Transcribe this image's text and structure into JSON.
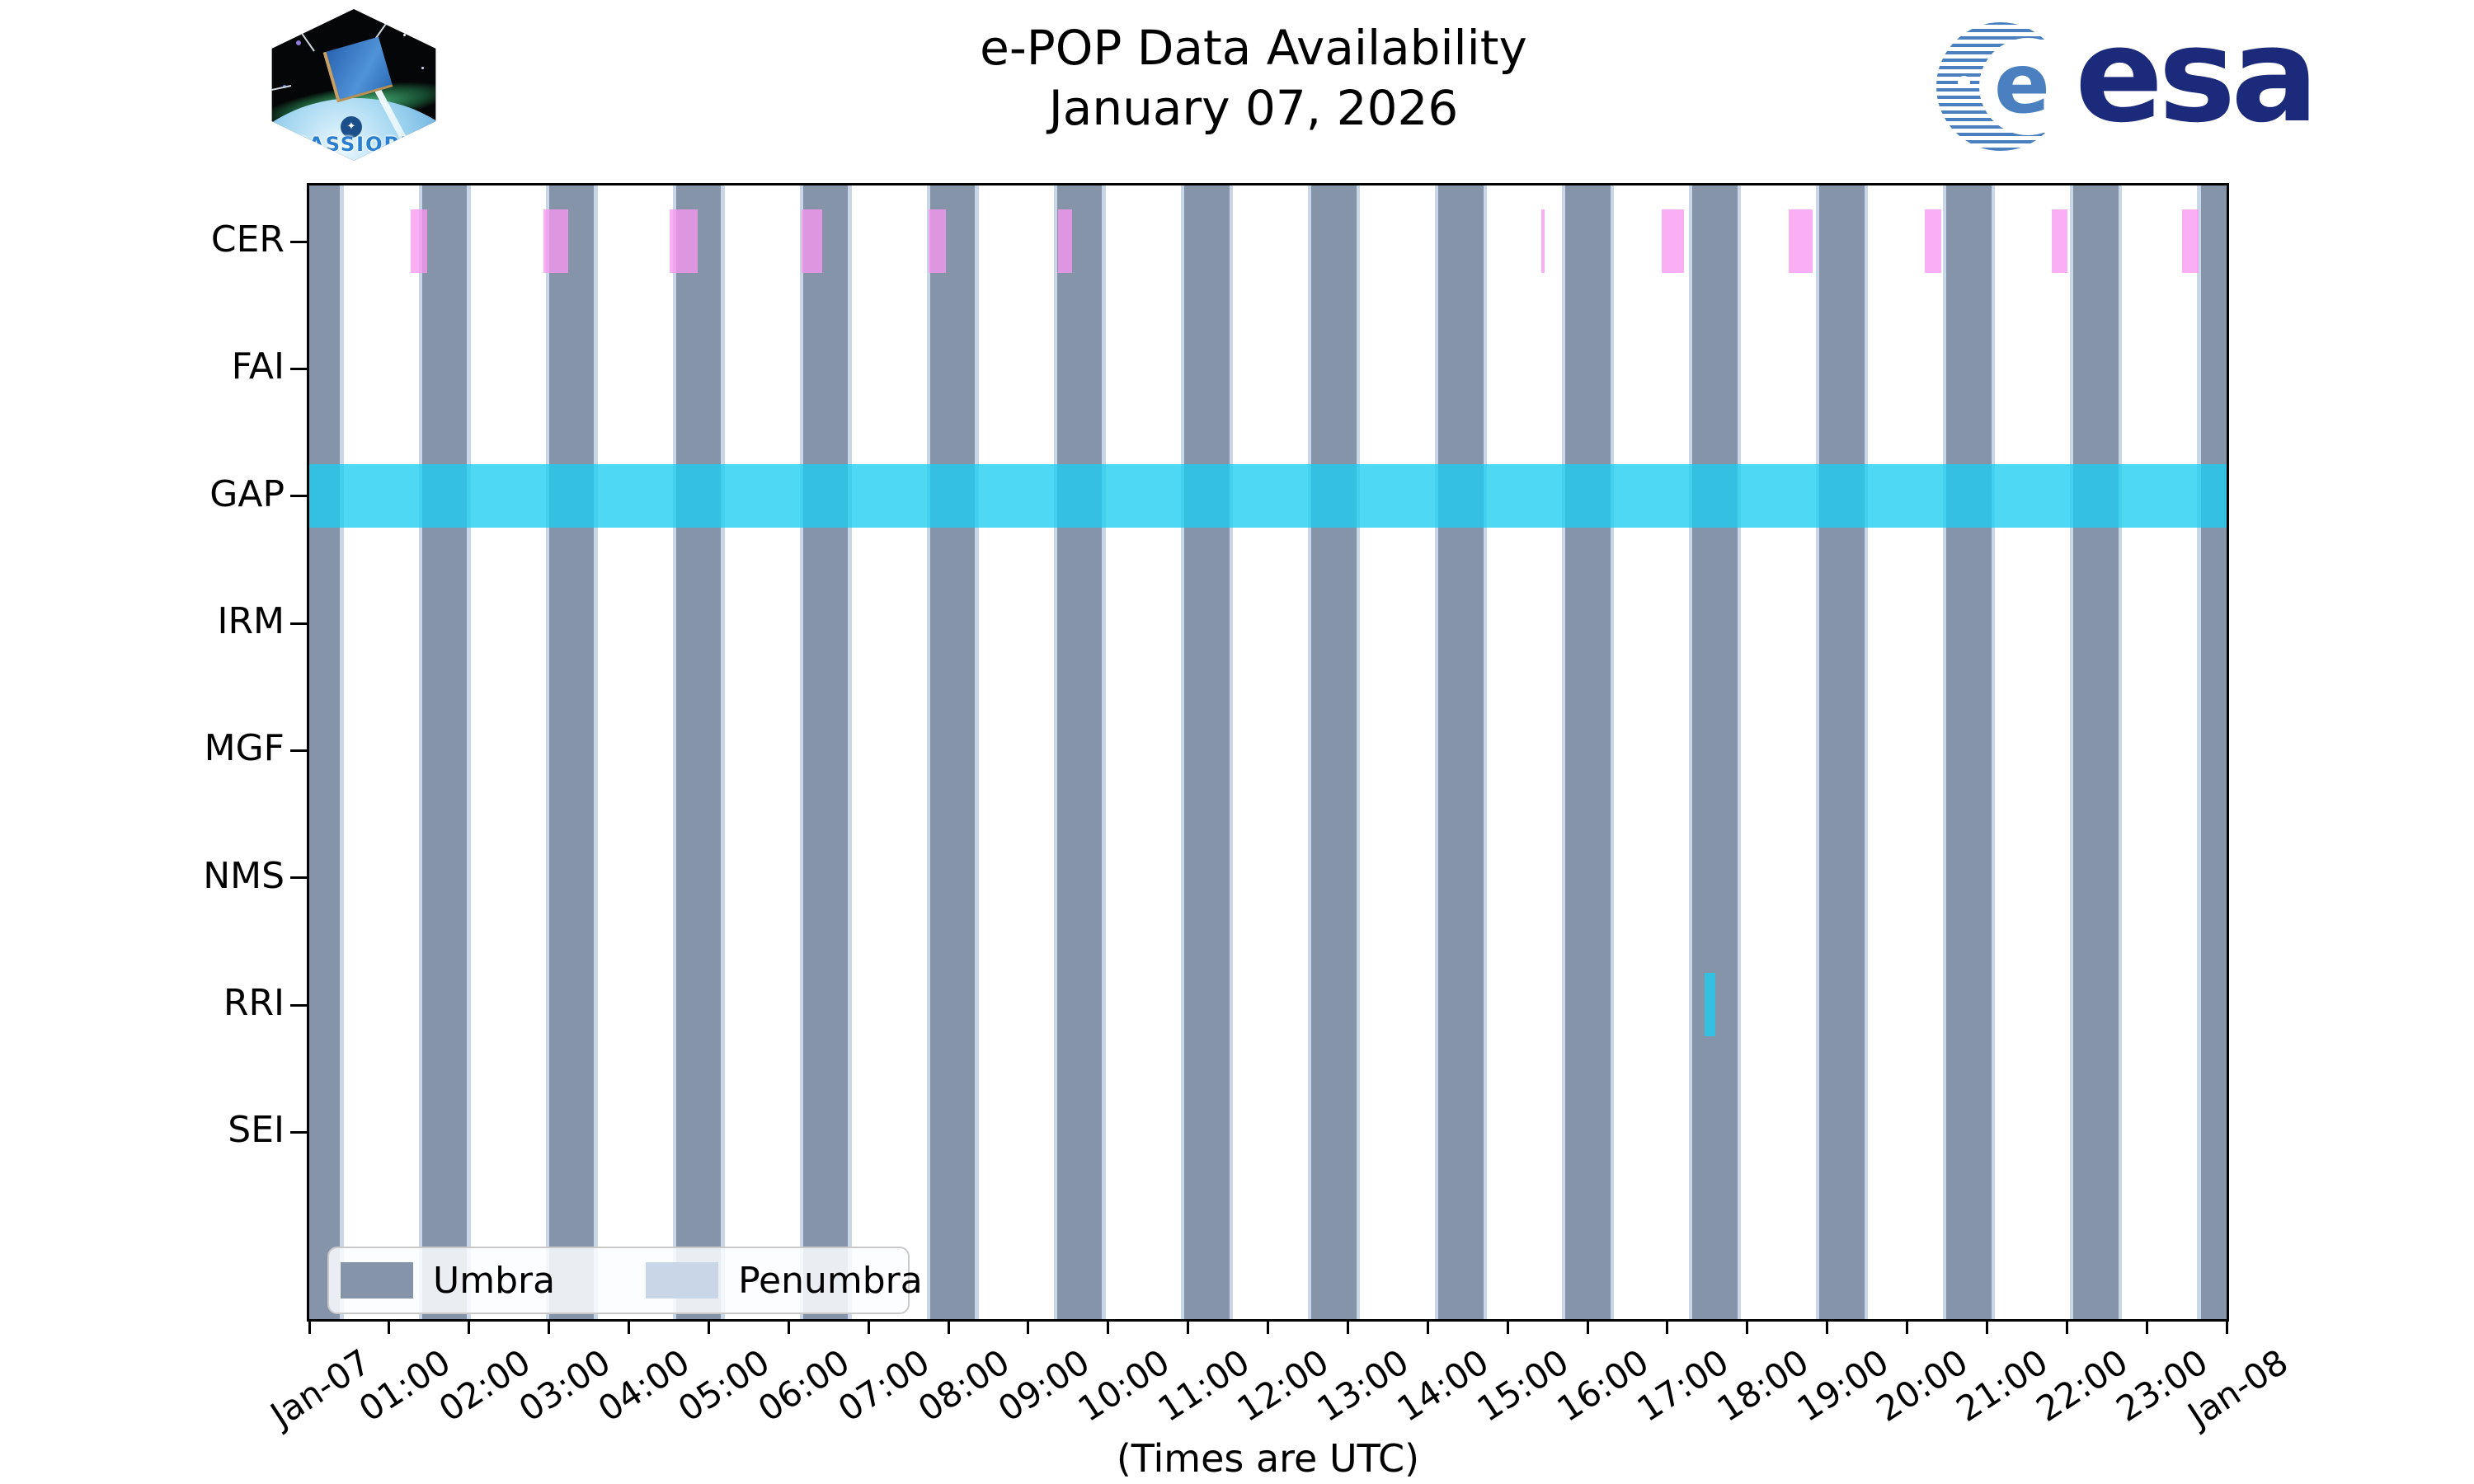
{
  "header": {
    "title_line1": "e-POP Data Availability",
    "title_line2": "January 07, 2026",
    "cassiope_patch_label": "CASSIOPE",
    "esa_wordmark": "esa"
  },
  "chart_data": {
    "type": "timeline-availability",
    "title": "e-POP Data Availability",
    "subtitle": "January 07, 2026",
    "xlabel": "(Times are UTC)",
    "x_range_hours": [
      0,
      24
    ],
    "x_tick_labels": [
      "Jan-07",
      "01:00",
      "02:00",
      "03:00",
      "04:00",
      "05:00",
      "06:00",
      "07:00",
      "08:00",
      "09:00",
      "10:00",
      "11:00",
      "12:00",
      "13:00",
      "14:00",
      "15:00",
      "16:00",
      "17:00",
      "18:00",
      "19:00",
      "20:00",
      "21:00",
      "22:00",
      "23:00",
      "Jan-08"
    ],
    "instruments": [
      "CER",
      "FAI",
      "GAP",
      "IRM",
      "MGF",
      "NMS",
      "RRI",
      "SEI"
    ],
    "legend": [
      {
        "label": "Umbra",
        "color": "#8594a8"
      },
      {
        "label": "Penumbra",
        "color": "#c9d6e7"
      }
    ],
    "colors": {
      "umbra": "#8594a8",
      "penumbra": "#c9d6e7",
      "cer_availability": "rgba(248,151,240,0.78)",
      "cyan_availability": "rgba(30,205,240,0.78)",
      "axis": "#000000"
    },
    "umbra_intervals_h": [
      [
        -0.17,
        0.39
      ],
      [
        1.42,
        1.98
      ],
      [
        3.01,
        3.57
      ],
      [
        4.6,
        5.16
      ],
      [
        6.19,
        6.75
      ],
      [
        7.78,
        8.34
      ],
      [
        9.37,
        9.93
      ],
      [
        10.96,
        11.52
      ],
      [
        12.55,
        13.11
      ],
      [
        14.14,
        14.7
      ],
      [
        15.73,
        16.29
      ],
      [
        17.32,
        17.88
      ],
      [
        18.91,
        19.47
      ],
      [
        20.5,
        21.06
      ],
      [
        22.09,
        22.65
      ],
      [
        23.68,
        24.24
      ]
    ],
    "penumbra_strip_width_h": 0.045,
    "availability_intervals_h": {
      "CER": [
        [
          1.27,
          1.48
        ],
        [
          2.94,
          3.25
        ],
        [
          4.52,
          4.87
        ],
        [
          6.17,
          6.43
        ],
        [
          7.76,
          7.97
        ],
        [
          9.38,
          9.55
        ],
        [
          15.43,
          15.47
        ],
        [
          16.93,
          17.21
        ],
        [
          18.52,
          18.82
        ],
        [
          20.23,
          20.43
        ],
        [
          21.82,
          22.01
        ],
        [
          23.45,
          23.65
        ]
      ],
      "FAI": [],
      "GAP": [
        [
          0,
          24
        ]
      ],
      "IRM": [],
      "MGF": [],
      "NMS": [],
      "RRI": [
        [
          17.47,
          17.6
        ]
      ],
      "SEI": []
    },
    "availability_color_by_instrument": {
      "CER": "cer_availability",
      "GAP": "cyan_availability",
      "RRI": "cyan_availability"
    }
  }
}
